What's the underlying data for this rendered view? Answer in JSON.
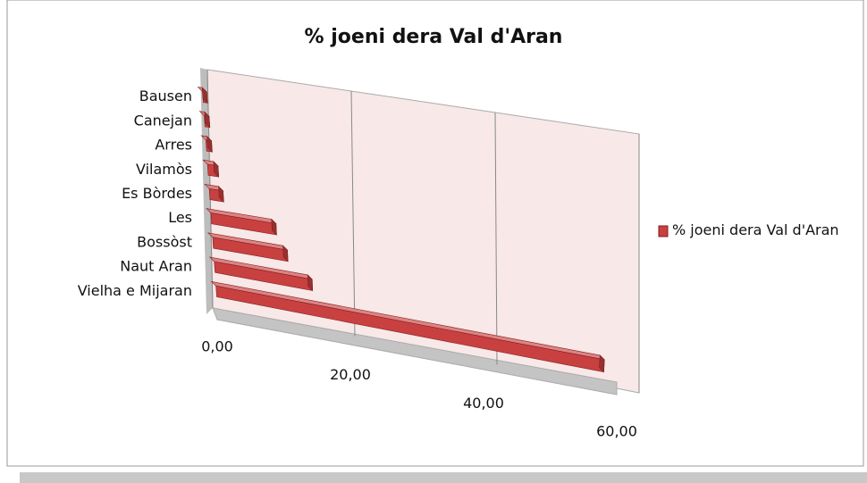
{
  "chart_data": {
    "type": "bar",
    "orientation": "horizontal",
    "title": "%  joeni dera Val d'Aran",
    "categories": [
      "Bausen",
      "Canejan",
      "Arres",
      "Vilamòs",
      "Es Bòrdes",
      "Les",
      "Bossòst",
      "Naut  Aran",
      "Vielha e Mijaran"
    ],
    "series": [
      {
        "name": "%  joeni dera Val d'Aran",
        "color": "#c94040",
        "values": [
          0.6,
          0.7,
          0.8,
          1.5,
          2,
          9.5,
          11,
          14.5,
          58
        ]
      }
    ],
    "xlim": [
      0,
      60
    ],
    "xticks": [
      {
        "value": 0,
        "label": "0,00"
      },
      {
        "value": 20,
        "label": "20,00"
      },
      {
        "value": 40,
        "label": "40,00"
      },
      {
        "value": 60,
        "label": "60,00"
      }
    ],
    "grid": true,
    "legend": "right"
  }
}
